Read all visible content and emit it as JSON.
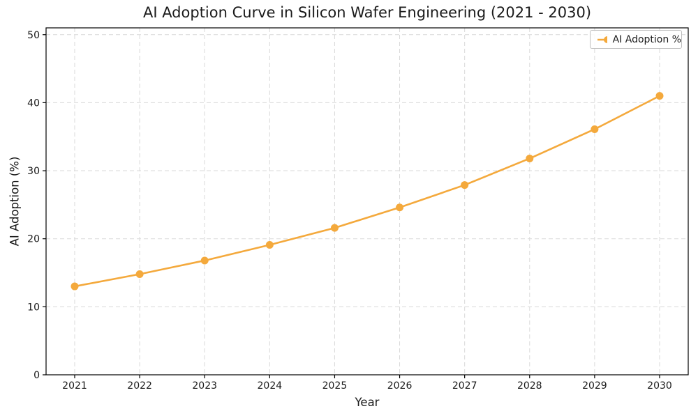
{
  "chart_data": {
    "type": "line",
    "title": "AI Adoption Curve in Silicon Wafer Engineering (2021 - 2030)",
    "xlabel": "Year",
    "ylabel": "AI Adoption (%)",
    "categories": [
      "2021",
      "2022",
      "2023",
      "2024",
      "2025",
      "2026",
      "2027",
      "2028",
      "2029",
      "2030"
    ],
    "series": [
      {
        "name": "AI Adoption %",
        "marker": "circle",
        "color": "#F4A93C",
        "values": [
          13.0,
          14.8,
          16.8,
          19.1,
          21.6,
          24.6,
          27.9,
          31.8,
          36.1,
          41.0
        ]
      }
    ],
    "ylim": [
      0,
      51
    ],
    "yticks": [
      0,
      10,
      20,
      30,
      40,
      50
    ],
    "grid": true,
    "grid_style": "dashed",
    "legend": {
      "position": "upper-right",
      "entries": [
        "AI Adoption %"
      ]
    }
  },
  "colors": {
    "line": "#F4A93C",
    "grid": "#D9D9D9",
    "spine": "#000000",
    "text": "#1A1A1A",
    "legend_border": "#BFBFBF",
    "background": "#FFFFFF"
  }
}
